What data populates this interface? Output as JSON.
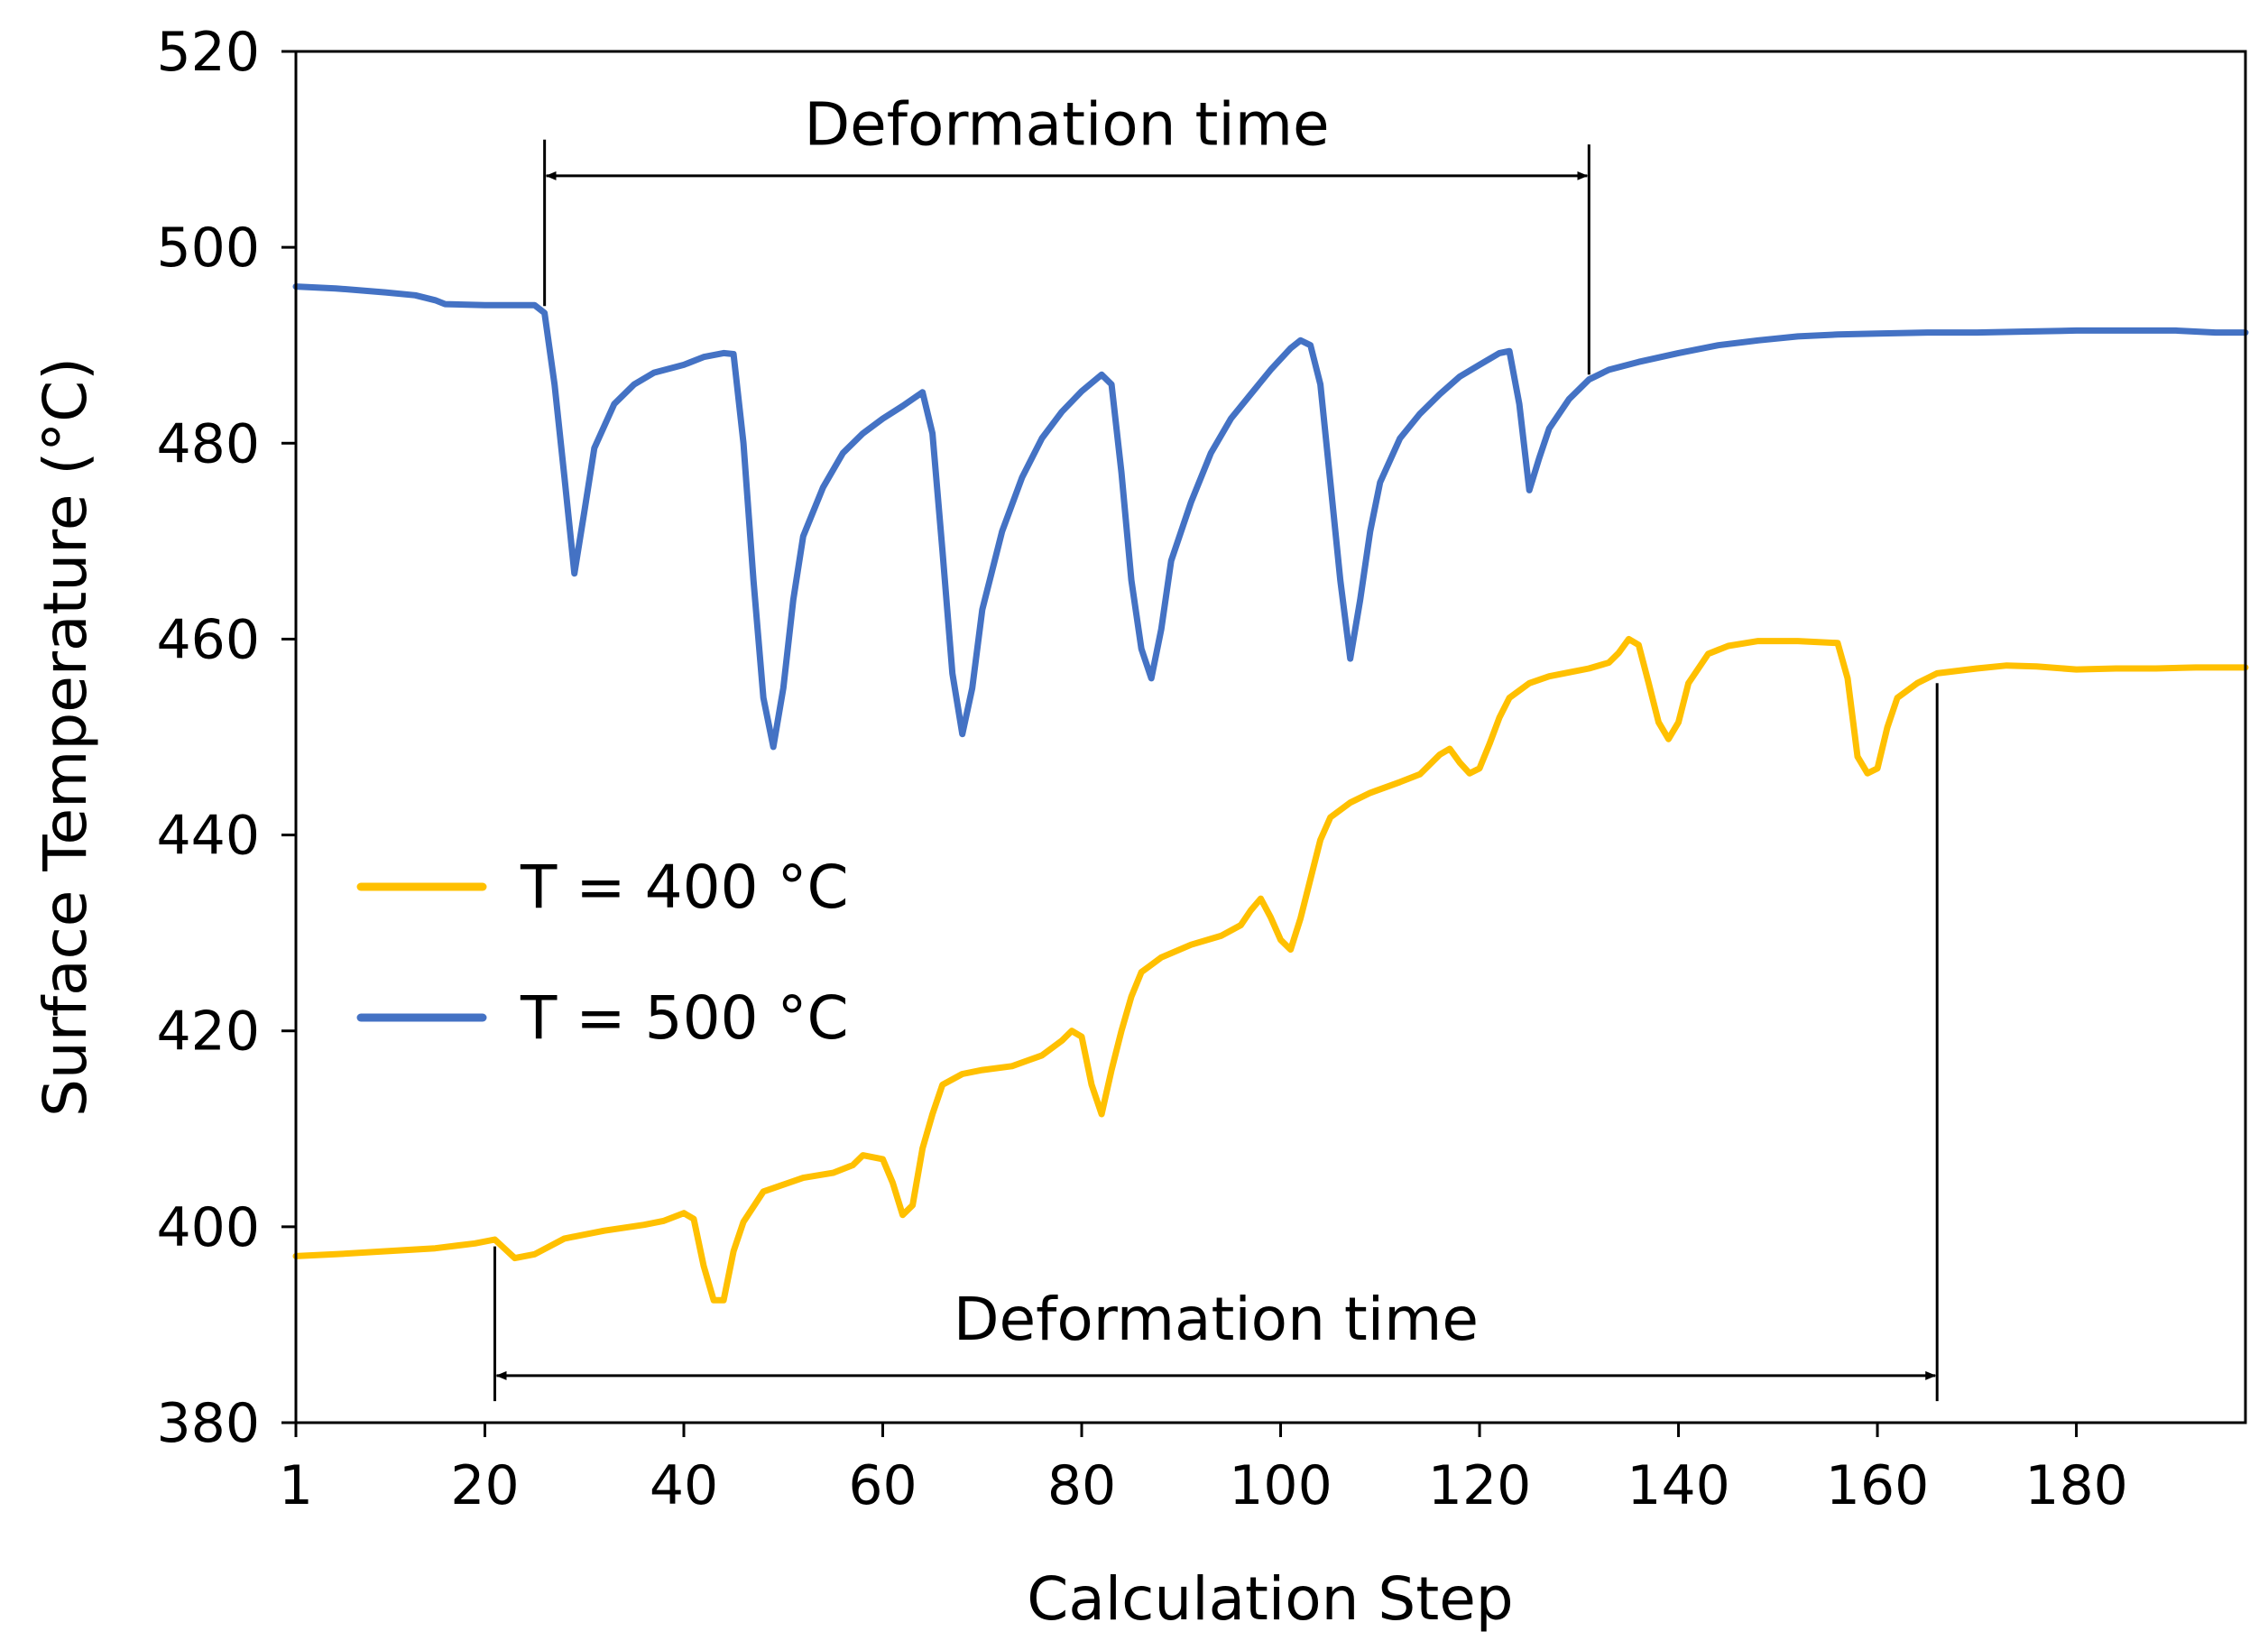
{
  "chart_data": {
    "type": "line",
    "title": "",
    "xlabel": "Calculation Step",
    "ylabel": "Surface Temperature (°C)",
    "xlim": [
      1,
      197
    ],
    "ylim": [
      380,
      520
    ],
    "xticks": [
      1,
      20,
      40,
      60,
      80,
      100,
      120,
      140,
      160,
      180
    ],
    "yticks": [
      380,
      400,
      420,
      440,
      460,
      480,
      500,
      520
    ],
    "grid": false,
    "legend_position": "middle-left",
    "series": [
      {
        "name": "T = 400 °C",
        "color": "#FFC000",
        "points": [
          [
            1,
            397
          ],
          [
            5,
            397.2
          ],
          [
            10,
            397.5
          ],
          [
            15,
            397.8
          ],
          [
            19,
            398.3
          ],
          [
            21,
            398.7
          ],
          [
            23,
            396.8
          ],
          [
            25,
            397.2
          ],
          [
            28,
            398.8
          ],
          [
            32,
            399.6
          ],
          [
            36,
            400.2
          ],
          [
            38,
            400.6
          ],
          [
            40,
            401.4
          ],
          [
            41,
            400.8
          ],
          [
            42,
            396
          ],
          [
            43,
            392.5
          ],
          [
            44,
            392.5
          ],
          [
            45,
            397.5
          ],
          [
            46,
            400.5
          ],
          [
            48,
            403.6
          ],
          [
            52,
            405
          ],
          [
            55,
            405.5
          ],
          [
            57,
            406.3
          ],
          [
            58,
            407.3
          ],
          [
            60,
            406.9
          ],
          [
            61,
            404.5
          ],
          [
            62,
            401.2
          ],
          [
            63,
            402.2
          ],
          [
            64,
            408
          ],
          [
            65,
            411.5
          ],
          [
            66,
            414.5
          ],
          [
            68,
            415.6
          ],
          [
            70,
            416
          ],
          [
            73,
            416.4
          ],
          [
            76,
            417.5
          ],
          [
            78,
            419
          ],
          [
            79,
            420
          ],
          [
            80,
            419.4
          ],
          [
            81,
            414.5
          ],
          [
            82,
            411.5
          ],
          [
            83,
            416
          ],
          [
            84,
            420
          ],
          [
            85,
            423.5
          ],
          [
            86,
            426
          ],
          [
            88,
            427.5
          ],
          [
            91,
            428.8
          ],
          [
            94,
            429.7
          ],
          [
            96,
            430.8
          ],
          [
            97,
            432.3
          ],
          [
            98,
            433.5
          ],
          [
            99,
            431.6
          ],
          [
            100,
            429.3
          ],
          [
            101,
            428.3
          ],
          [
            102,
            431.5
          ],
          [
            103,
            435.5
          ],
          [
            104,
            439.5
          ],
          [
            105,
            441.8
          ],
          [
            107,
            443.3
          ],
          [
            109,
            444.3
          ],
          [
            112,
            445.4
          ],
          [
            114,
            446.2
          ],
          [
            116,
            448.2
          ],
          [
            117,
            448.8
          ],
          [
            118,
            447.4
          ],
          [
            119,
            446.3
          ],
          [
            120,
            446.8
          ],
          [
            121,
            449.3
          ],
          [
            122,
            452
          ],
          [
            123,
            454
          ],
          [
            125,
            455.5
          ],
          [
            127,
            456.2
          ],
          [
            129,
            456.6
          ],
          [
            131,
            457
          ],
          [
            133,
            457.6
          ],
          [
            134,
            458.6
          ],
          [
            135,
            460
          ],
          [
            136,
            459.4
          ],
          [
            137,
            455.5
          ],
          [
            138,
            451.5
          ],
          [
            139,
            449.8
          ],
          [
            140,
            451.5
          ],
          [
            141,
            455.5
          ],
          [
            143,
            458.5
          ],
          [
            145,
            459.3
          ],
          [
            148,
            459.8
          ],
          [
            152,
            459.8
          ],
          [
            156,
            459.6
          ],
          [
            157,
            456
          ],
          [
            158,
            448
          ],
          [
            159,
            446.3
          ],
          [
            160,
            446.8
          ],
          [
            161,
            451
          ],
          [
            162,
            454
          ],
          [
            164,
            455.5
          ],
          [
            166,
            456.5
          ],
          [
            170,
            457
          ],
          [
            173,
            457.3
          ],
          [
            176,
            457.2
          ],
          [
            180,
            456.9
          ],
          [
            184,
            457
          ],
          [
            188,
            457
          ],
          [
            192,
            457.1
          ],
          [
            197,
            457.1
          ]
        ]
      },
      {
        "name": "T = 500 °C",
        "color": "#4472C4",
        "points": [
          [
            1,
            496
          ],
          [
            5,
            495.8
          ],
          [
            10,
            495.4
          ],
          [
            13,
            495.1
          ],
          [
            15,
            494.6
          ],
          [
            16,
            494.2
          ],
          [
            20,
            494.1
          ],
          [
            22,
            494.1
          ],
          [
            25,
            494.1
          ],
          [
            26,
            493.3
          ],
          [
            27,
            486
          ],
          [
            28,
            476.5
          ],
          [
            29,
            466.7
          ],
          [
            30,
            473
          ],
          [
            31,
            479.5
          ],
          [
            33,
            484
          ],
          [
            35,
            486
          ],
          [
            37,
            487.2
          ],
          [
            40,
            488
          ],
          [
            42,
            488.8
          ],
          [
            44,
            489.2
          ],
          [
            45,
            489.1
          ],
          [
            46,
            480
          ],
          [
            47,
            466
          ],
          [
            48,
            454
          ],
          [
            49,
            449
          ],
          [
            50,
            455
          ],
          [
            51,
            464
          ],
          [
            52,
            470.5
          ],
          [
            54,
            475.5
          ],
          [
            56,
            479
          ],
          [
            58,
            481
          ],
          [
            60,
            482.5
          ],
          [
            62,
            483.8
          ],
          [
            64,
            485.2
          ],
          [
            65,
            481
          ],
          [
            66,
            469
          ],
          [
            67,
            456.5
          ],
          [
            68,
            450.3
          ],
          [
            69,
            455
          ],
          [
            70,
            463
          ],
          [
            72,
            471
          ],
          [
            74,
            476.5
          ],
          [
            76,
            480.5
          ],
          [
            78,
            483.2
          ],
          [
            80,
            485.3
          ],
          [
            82,
            487
          ],
          [
            83,
            486
          ],
          [
            84,
            477
          ],
          [
            85,
            466
          ],
          [
            86,
            459
          ],
          [
            87,
            456
          ],
          [
            88,
            461
          ],
          [
            89,
            468
          ],
          [
            91,
            474
          ],
          [
            93,
            479
          ],
          [
            95,
            482.5
          ],
          [
            97,
            485
          ],
          [
            99,
            487.5
          ],
          [
            101,
            489.7
          ],
          [
            102,
            490.5
          ],
          [
            103,
            490
          ],
          [
            104,
            486
          ],
          [
            105,
            476
          ],
          [
            106,
            466
          ],
          [
            107,
            458
          ],
          [
            108,
            464
          ],
          [
            109,
            471
          ],
          [
            110,
            476
          ],
          [
            112,
            480.5
          ],
          [
            114,
            483
          ],
          [
            116,
            485
          ],
          [
            118,
            486.8
          ],
          [
            120,
            488
          ],
          [
            122,
            489.2
          ],
          [
            123,
            489.4
          ],
          [
            124,
            484
          ],
          [
            125,
            475.2
          ],
          [
            126,
            478.5
          ],
          [
            127,
            481.5
          ],
          [
            129,
            484.5
          ],
          [
            131,
            486.5
          ],
          [
            133,
            487.5
          ],
          [
            136,
            488.3
          ],
          [
            140,
            489.2
          ],
          [
            144,
            490
          ],
          [
            148,
            490.5
          ],
          [
            152,
            490.9
          ],
          [
            156,
            491.1
          ],
          [
            160,
            491.2
          ],
          [
            165,
            491.3
          ],
          [
            170,
            491.3
          ],
          [
            175,
            491.4
          ],
          [
            180,
            491.5
          ],
          [
            185,
            491.5
          ],
          [
            190,
            491.5
          ],
          [
            194,
            491.3
          ],
          [
            197,
            491.3
          ]
        ]
      }
    ],
    "annotations": [
      {
        "label": "Deformation time",
        "series": "T = 500 °C",
        "x_start": 26,
        "x_end": 131,
        "y_arrow": 507.3,
        "y_text": 512.5,
        "left_marker_y": [
          494,
          511
        ],
        "right_marker_y": [
          487,
          510.5
        ]
      },
      {
        "label": "Deformation time",
        "series": "T = 400 °C",
        "x_start": 21,
        "x_end": 166,
        "y_arrow": 384.8,
        "y_text": 390.5,
        "left_marker_y": [
          382.2,
          398
        ],
        "right_marker_y": [
          382.2,
          455.5
        ]
      }
    ]
  }
}
